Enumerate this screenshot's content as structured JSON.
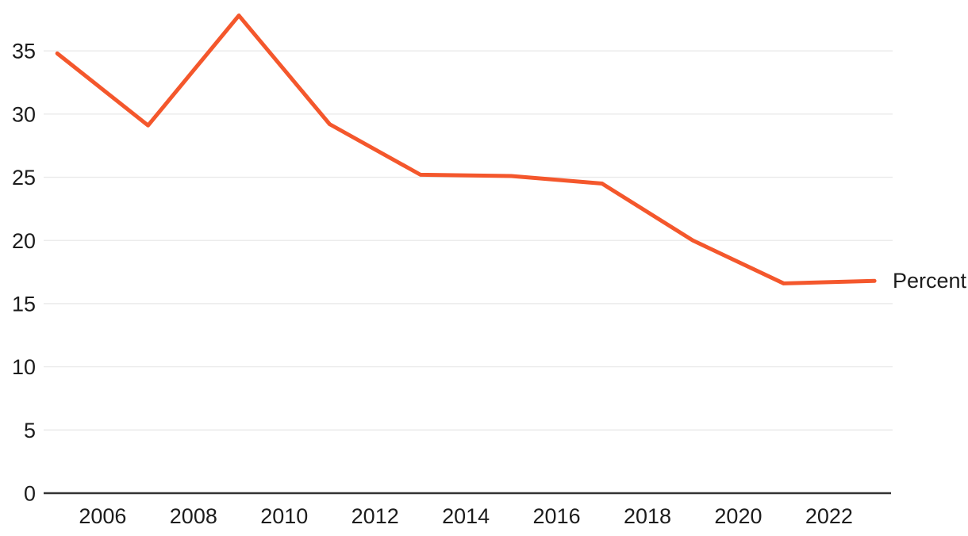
{
  "chart_data": {
    "type": "line",
    "x": [
      2005,
      2007,
      2009,
      2011,
      2013,
      2015,
      2017,
      2019,
      2021,
      2023
    ],
    "series": [
      {
        "name": "Percent",
        "values": [
          34.8,
          29.1,
          37.8,
          29.2,
          25.2,
          25.1,
          24.5,
          20.0,
          16.6,
          16.8
        ],
        "color": "#F4572C"
      }
    ],
    "title": "",
    "xlabel": "",
    "ylabel": "",
    "x_tick_labels": [
      2006,
      2008,
      2010,
      2012,
      2014,
      2016,
      2018,
      2020,
      2022
    ],
    "y_tick_labels": [
      0,
      5,
      10,
      15,
      20,
      25,
      30,
      35
    ],
    "xlim": [
      2004.7,
      2023.4
    ],
    "ylim": [
      0,
      38.4
    ],
    "grid": true,
    "legend_position": "right-of-line-end",
    "colors": {
      "line": "#F4572C",
      "grid": "#E9E9E9",
      "axis": "#333333",
      "text": "#1C1C1C"
    }
  }
}
